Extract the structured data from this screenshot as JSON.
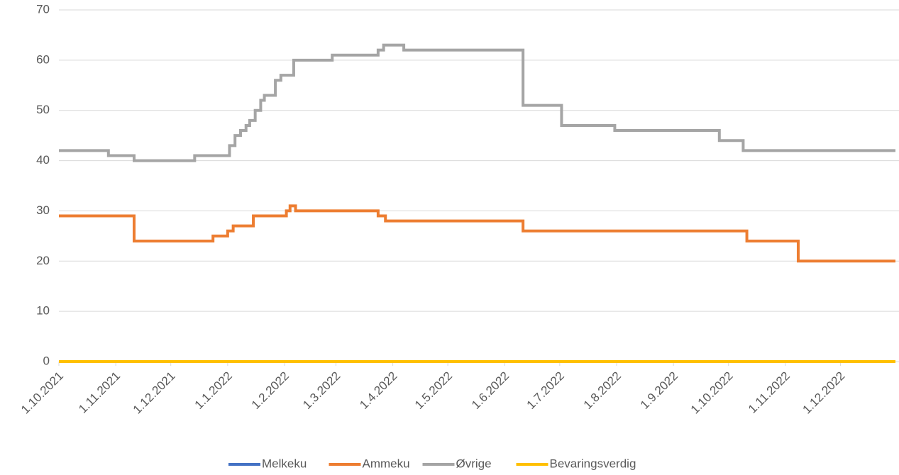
{
  "chart_data": {
    "type": "line",
    "step": true,
    "xlim": [
      "1.10.2021",
      "31.12.2022"
    ],
    "xticks": [
      "1.10.2021",
      "1.11.2021",
      "1.12.2021",
      "1.1.2022",
      "1.2.2022",
      "1.3.2022",
      "1.4.2022",
      "1.5.2022",
      "1.6.2022",
      "1.7.2022",
      "1.8.2022",
      "1.9.2022",
      "1.10.2022",
      "1.11.2022",
      "1.12.2022"
    ],
    "ylim": [
      0,
      70
    ],
    "yticks": [
      0,
      10,
      20,
      30,
      40,
      50,
      60,
      70
    ],
    "grid": true,
    "legend": "bottom",
    "series": [
      {
        "name": "Melkeku",
        "color": "#4472c4",
        "x": [
          "1.10.2021",
          "31.12.2022"
        ],
        "values": [
          0,
          0
        ]
      },
      {
        "name": "Ammeku",
        "color": "#ed7d31",
        "x": [
          "1.10.2021",
          "11.11.2021",
          "24.12.2021",
          "1.1.2022",
          "4.1.2022",
          "15.1.2022",
          "2.2.2022",
          "4.2.2022",
          "7.2.2022",
          "24.3.2022",
          "28.3.2022",
          "11.6.2022",
          "11.10.2022",
          "8.11.2022",
          "31.12.2022"
        ],
        "values": [
          29,
          24,
          25,
          26,
          27,
          29,
          30,
          31,
          30,
          29,
          28,
          26,
          24,
          20,
          20
        ]
      },
      {
        "name": "Øvrige",
        "color": "#a5a5a5",
        "x": [
          "1.10.2021",
          "28.10.2021",
          "11.11.2021",
          "14.12.2021",
          "2.1.2022",
          "5.1.2022",
          "8.1.2022",
          "11.1.2022",
          "13.1.2022",
          "16.1.2022",
          "19.1.2022",
          "21.1.2022",
          "27.1.2022",
          "30.1.2022",
          "6.2.2022",
          "27.2.2022",
          "24.3.2022",
          "27.3.2022",
          "7.4.2022",
          "11.6.2022",
          "2.7.2022",
          "31.7.2022",
          "26.9.2022",
          "9.10.2022",
          "31.12.2022"
        ],
        "values": [
          42,
          41,
          40,
          41,
          43,
          45,
          46,
          47,
          48,
          50,
          52,
          53,
          56,
          57,
          60,
          61,
          62,
          63,
          62,
          51,
          47,
          46,
          44,
          42,
          42
        ]
      },
      {
        "name": "Bevaringsverdig",
        "color": "#ffc000",
        "x": [
          "1.10.2021",
          "31.12.2022"
        ],
        "values": [
          0,
          0
        ]
      }
    ]
  }
}
